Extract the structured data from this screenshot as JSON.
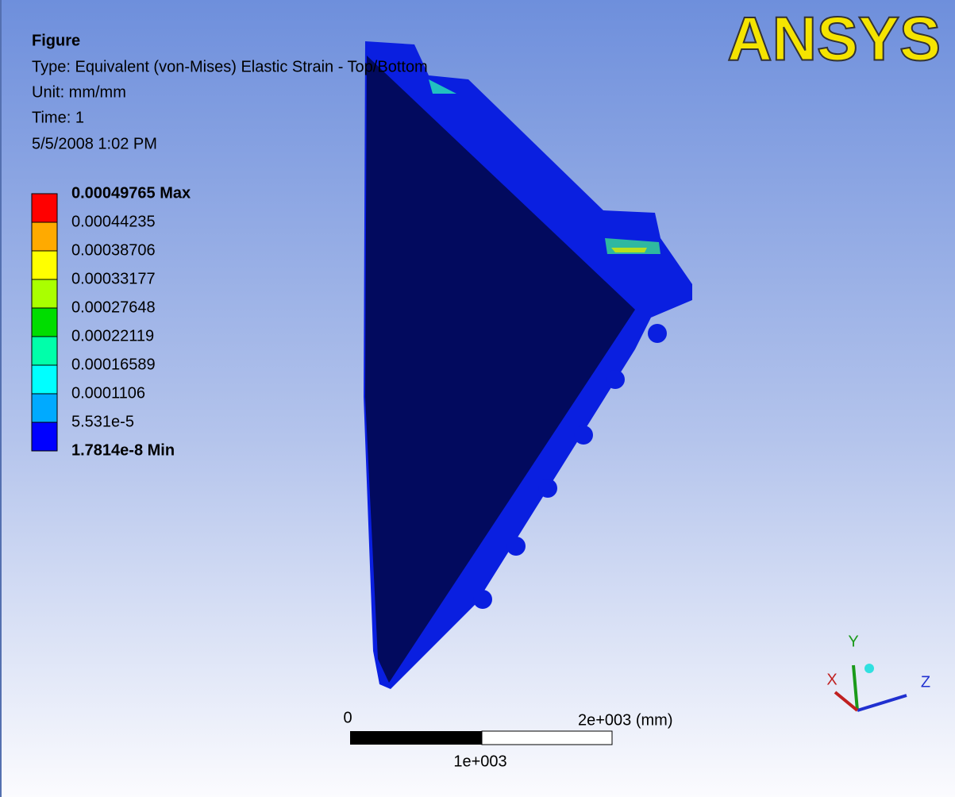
{
  "header": {
    "title": "Figure",
    "type": "Type: Equivalent (von-Mises) Elastic Strain - Top/Bottom",
    "unit": "Unit: mm/mm",
    "time": "Time: 1",
    "date": "5/5/2008 1:02 PM"
  },
  "logo": "ANSYS",
  "legend": {
    "labels": [
      "0.00049765 Max",
      "0.00044235",
      "0.00038706",
      "0.00033177",
      "0.00027648",
      "0.00022119",
      "0.00016589",
      "0.0001106",
      "5.531e-5",
      "1.7814e-8 Min"
    ],
    "colors": [
      "#ff0000",
      "#ffaa00",
      "#ffff00",
      "#aaff00",
      "#00dd00",
      "#00ffaa",
      "#00ffff",
      "#00aaff",
      "#0000ff"
    ]
  },
  "scale_bar": {
    "start": "0",
    "end": "2e+003 (mm)",
    "middle": "1e+003"
  },
  "triad": {
    "x": "X",
    "y": "Y",
    "z": "Z"
  }
}
